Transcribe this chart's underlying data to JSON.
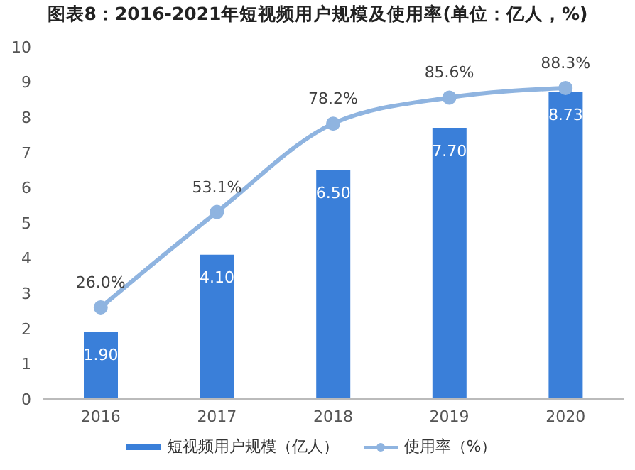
{
  "chart_data": {
    "type": "bar",
    "title": "图表8：2016-2021年短视频用户规模及使用率(单位：亿人，%)",
    "categories": [
      "2016",
      "2017",
      "2018",
      "2019",
      "2020"
    ],
    "series": [
      {
        "name": "短视频用户规模（亿人）",
        "color": "#3a7fd9",
        "values": [
          1.9,
          4.1,
          6.5,
          7.7,
          8.73
        ],
        "value_labels": [
          "1.90",
          "4.10",
          "6.50",
          "7.70",
          "8.73"
        ]
      },
      {
        "name": "使用率（%）",
        "type": "line",
        "axis": "y2",
        "color": "#8fb4e0",
        "values": [
          26.0,
          53.1,
          78.2,
          85.6,
          88.3
        ],
        "value_labels": [
          "26.0%",
          "53.1%",
          "78.2%",
          "85.6%",
          "88.3%"
        ]
      }
    ],
    "ylim": [
      0,
      10
    ],
    "yticks": [
      0,
      1,
      2,
      3,
      4,
      5,
      6,
      7,
      8,
      9,
      10
    ],
    "tick_labels": [
      "x",
      "y"
    ],
    "legend": "bottom",
    "marker": "circle",
    "line_style": "solid"
  }
}
